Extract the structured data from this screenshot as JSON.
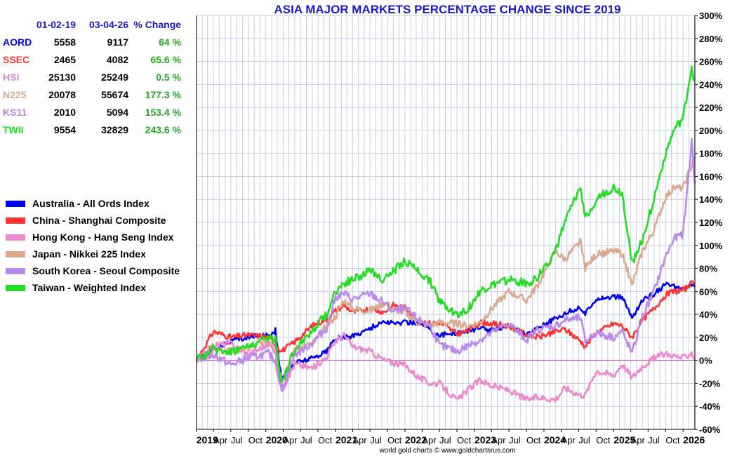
{
  "chart_data": {
    "type": "line",
    "title": "ASIA MAJOR MARKETS PERCENTAGE CHANGE SINCE 2019",
    "xlabel": "",
    "ylabel": "",
    "x_range": [
      "2019-01-02",
      "2026-03-04"
    ],
    "ylim": [
      -60,
      300
    ],
    "y_ticks": [
      -60,
      -40,
      -20,
      0,
      20,
      40,
      60,
      80,
      100,
      120,
      140,
      160,
      180,
      200,
      220,
      240,
      260,
      280,
      300
    ],
    "y_tick_labels": [
      "-60%",
      "-40%",
      "-20%",
      "0%",
      "20%",
      "40%",
      "60%",
      "80%",
      "100%",
      "120%",
      "140%",
      "160%",
      "180%",
      "200%",
      "220%",
      "240%",
      "260%",
      "280%",
      "300%"
    ],
    "y_axis_side": "right",
    "x_tick_labels": [
      {
        "label": "2019",
        "x": "2019-01-01",
        "bold": true
      },
      {
        "label": "Apr",
        "x": "2019-04-01"
      },
      {
        "label": "Jul",
        "x": "2019-07-01"
      },
      {
        "label": "Oct",
        "x": "2019-10-01"
      },
      {
        "label": "2020",
        "x": "2020-01-01",
        "bold": true
      },
      {
        "label": "Apr",
        "x": "2020-04-01"
      },
      {
        "label": "Jul",
        "x": "2020-07-01"
      },
      {
        "label": "Oct",
        "x": "2020-10-01"
      },
      {
        "label": "2021",
        "x": "2021-01-01",
        "bold": true
      },
      {
        "label": "Apr",
        "x": "2021-04-01"
      },
      {
        "label": "Jul",
        "x": "2021-07-01"
      },
      {
        "label": "Oct",
        "x": "2021-10-01"
      },
      {
        "label": "2022",
        "x": "2022-01-01",
        "bold": true
      },
      {
        "label": "Apr",
        "x": "2022-04-01"
      },
      {
        "label": "Jul",
        "x": "2022-07-01"
      },
      {
        "label": "Oct",
        "x": "2022-10-01"
      },
      {
        "label": "2023",
        "x": "2023-01-01",
        "bold": true
      },
      {
        "label": "Apr",
        "x": "2023-04-01"
      },
      {
        "label": "Jul",
        "x": "2023-07-01"
      },
      {
        "label": "Oct",
        "x": "2023-10-01"
      },
      {
        "label": "2024",
        "x": "2024-01-01",
        "bold": true
      },
      {
        "label": "Apr",
        "x": "2024-04-01"
      },
      {
        "label": "Jul",
        "x": "2024-07-01"
      },
      {
        "label": "Oct",
        "x": "2024-10-01"
      },
      {
        "label": "2025",
        "x": "2025-01-01",
        "bold": true
      },
      {
        "label": "Apr",
        "x": "2025-04-01"
      },
      {
        "label": "Jul",
        "x": "2025-07-01"
      },
      {
        "label": "Oct",
        "x": "2025-10-01"
      },
      {
        "label": "2026",
        "x": "2026-01-01",
        "bold": true
      }
    ],
    "grid": true,
    "legend_position": "left",
    "baseline": 0,
    "x": [
      "2019-01-02",
      "2019-04-01",
      "2019-07-01",
      "2019-10-01",
      "2020-01-15",
      "2020-02-20",
      "2020-03-23",
      "2020-06-01",
      "2020-09-01",
      "2020-11-15",
      "2021-01-01",
      "2021-02-15",
      "2021-04-01",
      "2021-07-01",
      "2021-09-15",
      "2021-11-01",
      "2022-01-01",
      "2022-03-15",
      "2022-05-15",
      "2022-07-01",
      "2022-10-01",
      "2022-12-01",
      "2023-02-01",
      "2023-04-01",
      "2023-07-01",
      "2023-10-01",
      "2023-12-01",
      "2024-03-01",
      "2024-04-20",
      "2024-07-10",
      "2024-08-05",
      "2024-10-01",
      "2025-01-01",
      "2025-02-15",
      "2025-04-08",
      "2025-06-01",
      "2025-08-01",
      "2025-10-01",
      "2025-11-15",
      "2026-01-01",
      "2026-02-15",
      "2026-03-04"
    ],
    "series": [
      {
        "name": "Australia - All Ords Index",
        "ticker": "AORD",
        "color": "#0000ee",
        "values": [
          0,
          10,
          17,
          20,
          22,
          26,
          -17,
          -2,
          2,
          8,
          19,
          20,
          21,
          28,
          34,
          32,
          33,
          33,
          26,
          22,
          24,
          26,
          28,
          26,
          31,
          22,
          29,
          36,
          41,
          46,
          40,
          54,
          55,
          55,
          37,
          52,
          58,
          66,
          64,
          61,
          66,
          64
        ]
      },
      {
        "name": "China - Shanghai Composite",
        "ticker": "SSEC",
        "color": "#ff3333",
        "values": [
          0,
          25,
          20,
          22,
          20,
          14,
          8,
          16,
          30,
          36,
          43,
          48,
          42,
          45,
          42,
          48,
          46,
          35,
          32,
          33,
          23,
          26,
          33,
          32,
          30,
          22,
          20,
          25,
          27,
          17,
          12,
          24,
          32,
          30,
          20,
          35,
          45,
          57,
          60,
          61,
          67,
          66
        ]
      },
      {
        "name": "Hong Kong - Hang Seng Index",
        "ticker": "HSI",
        "color": "#ee88cc",
        "values": [
          0,
          13,
          15,
          5,
          14,
          8,
          -27,
          -3,
          -7,
          3,
          17,
          22,
          12,
          8,
          0,
          -2,
          -4,
          -15,
          -20,
          -20,
          -35,
          -25,
          -17,
          -22,
          -26,
          -34,
          -32,
          -34,
          -24,
          -30,
          -30,
          -9,
          -13,
          -3,
          -15,
          -5,
          2,
          6,
          4,
          2,
          7,
          0.5
        ]
      },
      {
        "name": "Japan - Nikkei 225 Index",
        "ticker": "N225",
        "color": "#dca890",
        "values": [
          0,
          8,
          8,
          10,
          18,
          14,
          -18,
          10,
          14,
          30,
          38,
          52,
          45,
          43,
          50,
          45,
          42,
          32,
          30,
          33,
          32,
          30,
          33,
          45,
          60,
          52,
          66,
          95,
          88,
          103,
          80,
          92,
          95,
          93,
          65,
          95,
          113,
          142,
          150,
          150,
          170,
          177.3
        ]
      },
      {
        "name": "South Korea - Seoul Composite",
        "ticker": "KS11",
        "color": "#bb88ee",
        "values": [
          0,
          5,
          -4,
          2,
          6,
          0,
          -26,
          5,
          15,
          28,
          55,
          58,
          53,
          58,
          50,
          42,
          45,
          35,
          30,
          13,
          8,
          13,
          18,
          24,
          32,
          18,
          27,
          30,
          35,
          37,
          17,
          24,
          20,
          25,
          6,
          38,
          60,
          90,
          106,
          110,
          190,
          153.4
        ]
      },
      {
        "name": "Taiwan - Weighted Index",
        "ticker": "TWII",
        "color": "#22dd22",
        "values": [
          0,
          10,
          8,
          12,
          20,
          18,
          -20,
          10,
          26,
          40,
          60,
          67,
          70,
          78,
          70,
          78,
          86,
          78,
          68,
          52,
          40,
          45,
          60,
          65,
          70,
          67,
          72,
          95,
          120,
          150,
          125,
          140,
          150,
          145,
          85,
          105,
          140,
          180,
          200,
          210,
          255,
          243.6
        ]
      }
    ]
  },
  "table": {
    "headers": [
      "",
      "01-02-19",
      "03-04-26",
      "% Change"
    ],
    "header_color": "#1a1acc",
    "change_color": "#22aa22",
    "rows": [
      {
        "ticker": "AORD",
        "start": "5558",
        "end": "9117",
        "change": "64 %",
        "color": "#0000ee"
      },
      {
        "ticker": "SSEC",
        "start": "2465",
        "end": "4082",
        "change": "65.6 %",
        "color": "#ff3333"
      },
      {
        "ticker": "HSI",
        "start": "25130",
        "end": "25249",
        "change": "0.5 %",
        "color": "#ee88cc"
      },
      {
        "ticker": "N225",
        "start": "20078",
        "end": "55674",
        "change": "177.3 %",
        "color": "#dca890"
      },
      {
        "ticker": "KS11",
        "start": "2010",
        "end": "5094",
        "change": "153.4 %",
        "color": "#bb88ee"
      },
      {
        "ticker": "TWII",
        "start": "9554",
        "end": "32829",
        "change": "243.6 %",
        "color": "#22dd22"
      }
    ]
  },
  "credit": "world gold charts © www.goldchartsrus.com"
}
